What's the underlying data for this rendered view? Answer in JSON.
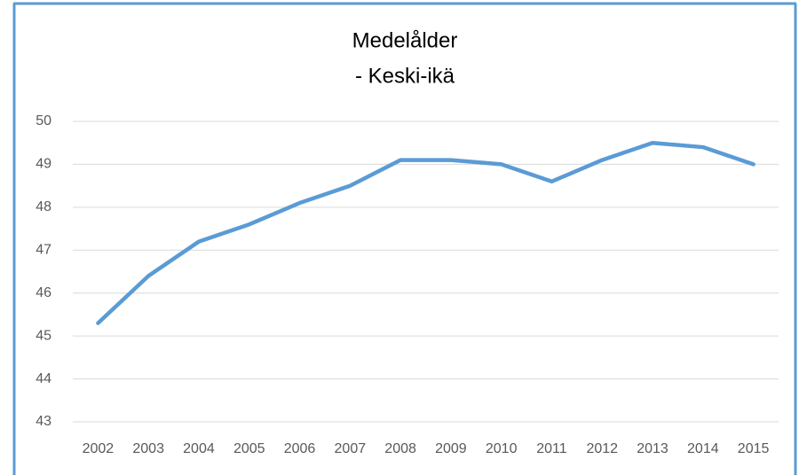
{
  "chart_data": {
    "type": "line",
    "title": "Medelålder",
    "subtitle": "- Keski-ikä",
    "categories": [
      "2002",
      "2003",
      "2004",
      "2005",
      "2006",
      "2007",
      "2008",
      "2009",
      "2010",
      "2011",
      "2012",
      "2013",
      "2014",
      "2015"
    ],
    "series": [
      {
        "name": "Medelålder",
        "color": "#5b9bd5",
        "values": [
          45.3,
          46.4,
          47.2,
          47.6,
          48.1,
          48.5,
          49.1,
          49.1,
          49.0,
          48.6,
          49.1,
          49.5,
          49.4,
          49.0
        ]
      }
    ],
    "ylim": [
      43,
      50
    ],
    "yticks": [
      43,
      44,
      45,
      46,
      47,
      48,
      49,
      50
    ],
    "grid": true
  }
}
